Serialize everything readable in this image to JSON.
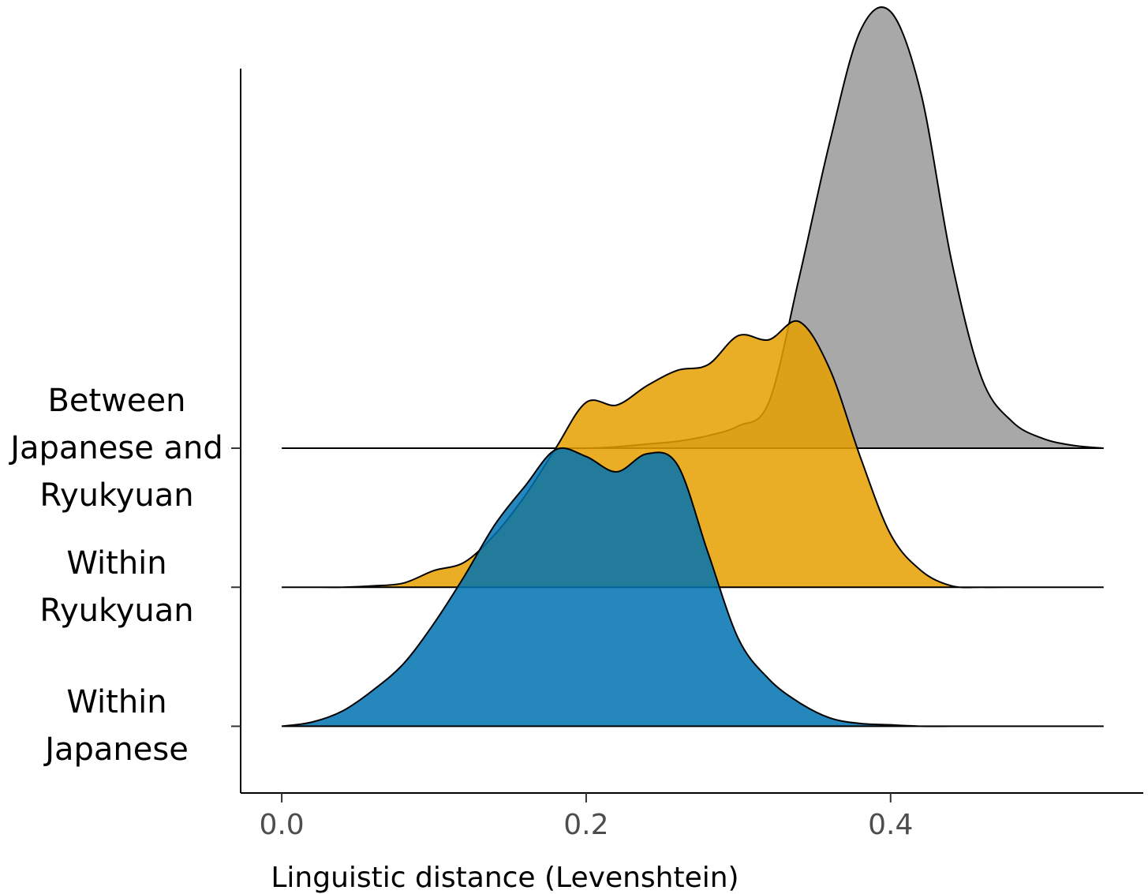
{
  "chart_data": {
    "type": "ridgeline",
    "x_label": "Linguistic distance (Levenshtein)",
    "xlim": [
      -0.027,
      0.566
    ],
    "xticks": [
      {
        "value": 0,
        "label": "0.0"
      },
      {
        "value": 0.2,
        "label": "0.2"
      },
      {
        "value": 0.4,
        "label": "0.4"
      }
    ],
    "ylim": [
      -0.48,
      4.73
    ],
    "x": [
      0,
      0.02,
      0.04,
      0.06,
      0.08,
      0.1,
      0.12,
      0.14,
      0.16,
      0.18,
      0.2,
      0.22,
      0.24,
      0.26,
      0.28,
      0.3,
      0.32,
      0.34,
      0.36,
      0.38,
      0.4,
      0.42,
      0.44,
      0.46,
      0.48,
      0.5,
      0.52,
      0.54
    ],
    "series": [
      {
        "name": "Within\nJapanese",
        "color": "#0072B2",
        "values": [
          0,
          0.03,
          0.11,
          0.26,
          0.45,
          0.74,
          1.08,
          1.45,
          1.73,
          1.99,
          1.94,
          1.83,
          1.96,
          1.88,
          1.25,
          0.63,
          0.34,
          0.17,
          0.06,
          0.02,
          0.01,
          0,
          0,
          0,
          0,
          0,
          0,
          0
        ]
      },
      {
        "name": "Within\nRyukyuan",
        "color": "#E69F00",
        "values": [
          0,
          0,
          0,
          0.01,
          0.03,
          0.12,
          0.18,
          0.38,
          0.66,
          1.0,
          1.33,
          1.31,
          1.45,
          1.56,
          1.6,
          1.81,
          1.78,
          1.91,
          1.57,
          0.94,
          0.38,
          0.12,
          0.01,
          0,
          0,
          0,
          0,
          0
        ]
      },
      {
        "name": "Between\nJapanese and\nRyukyuan",
        "color": "#999999",
        "values": [
          0,
          0,
          0,
          0,
          0,
          0,
          0,
          0,
          0,
          0,
          0,
          0.01,
          0.03,
          0.05,
          0.09,
          0.16,
          0.33,
          1.23,
          2.2,
          3.0,
          3.14,
          2.55,
          1.35,
          0.5,
          0.19,
          0.07,
          0.02,
          0
        ]
      }
    ]
  }
}
